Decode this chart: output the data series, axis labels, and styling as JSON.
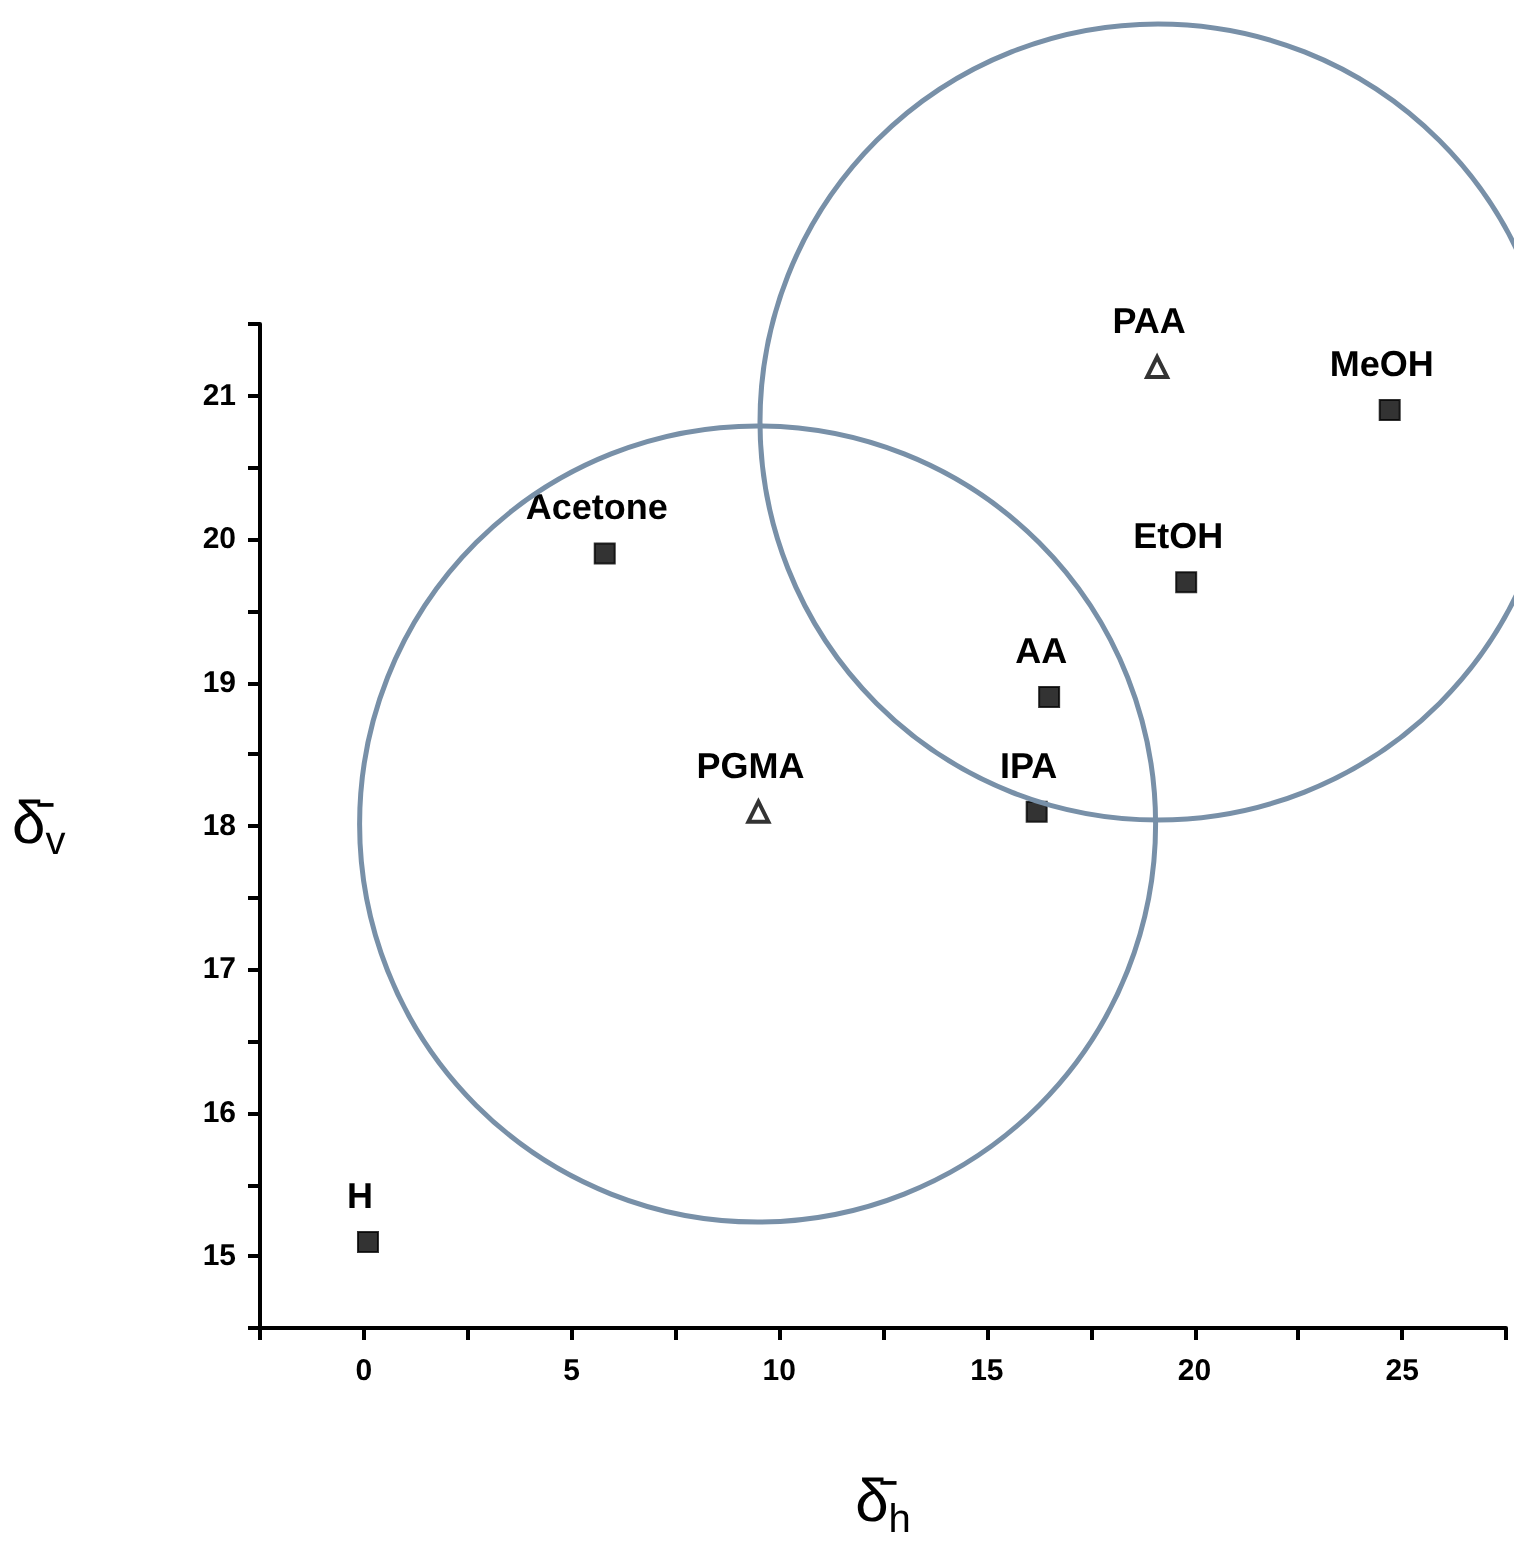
{
  "chart_data": {
    "type": "scatter",
    "xlabel": "δ̄$_{h}$",
    "ylabel": "δ̄$_{v}$",
    "xlim": [
      -2.5,
      27.5
    ],
    "ylim": [
      14.5,
      21.5
    ],
    "xticks": [
      {
        "value": -2.5,
        "label": null
      },
      0,
      {
        "value": 2.5,
        "label": null
      },
      5,
      {
        "value": 7.5,
        "label": null
      },
      10,
      {
        "value": 12.5,
        "label": null
      },
      15,
      {
        "value": 17.5,
        "label": null
      },
      20,
      {
        "value": 22.5,
        "label": null
      },
      25,
      {
        "value": 27.5,
        "label": null
      }
    ],
    "yticks": [
      {
        "value": 14.5,
        "label": null
      },
      15,
      {
        "value": 15.5,
        "label": null
      },
      16,
      {
        "value": 16.5,
        "label": null
      },
      17,
      {
        "value": 17.5,
        "label": null
      },
      18,
      {
        "value": 18.5,
        "label": null
      },
      19,
      {
        "value": 19.5,
        "label": null
      },
      20,
      {
        "value": 20.5,
        "label": null
      },
      21,
      {
        "value": 21.5,
        "label": null
      }
    ],
    "grid": false,
    "series": [
      {
        "marker": "square",
        "color": "#000000",
        "x": [
          0.1,
          5.8,
          16.5,
          16.2,
          19.8,
          24.7
        ],
        "values": [
          15.1,
          19.9,
          18.9,
          18.1,
          19.7,
          20.9
        ]
      },
      {
        "marker": "triangle",
        "color": "#000000",
        "x": [
          9.5,
          19.1
        ],
        "values": [
          18.1,
          21.2
        ]
      }
    ],
    "annotations": [
      {
        "text": "H",
        "x": 0.1,
        "y": 15.1
      },
      {
        "text": "Acetone",
        "x": 5.8,
        "y": 19.9
      },
      {
        "text": "AA",
        "x": 16.5,
        "y": 18.9
      },
      {
        "text": "IPA",
        "x": 16.2,
        "y": 18.1
      },
      {
        "text": "EtOH",
        "x": 19.8,
        "y": 19.7
      },
      {
        "text": "MeOH",
        "x": 24.7,
        "y": 20.9
      },
      {
        "text": "PGMA",
        "x": 9.5,
        "y": 18.1
      },
      {
        "text": "PAA",
        "x": 19.1,
        "y": 21.2
      }
    ]
  }
}
